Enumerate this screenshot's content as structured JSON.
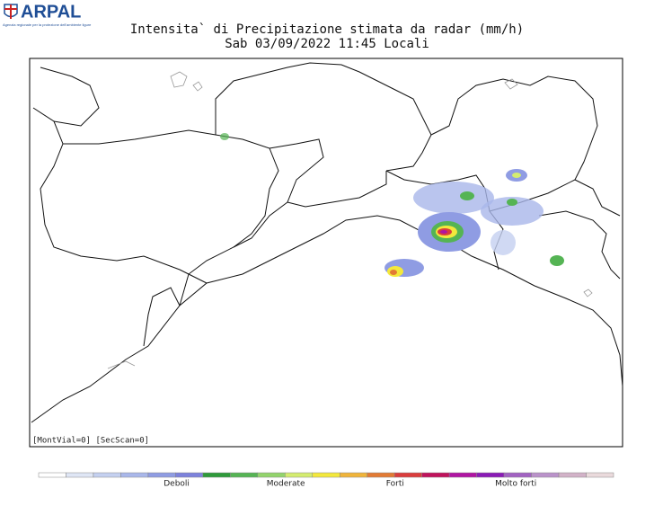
{
  "header": {
    "logo": "ARPAL",
    "logo_subtitle": "Agenzia regionale per la protezione dell'ambiente ligure",
    "title": "Intensita` di Precipitazione stimata da radar (mm/h)",
    "subtitle": "Sab 03/09/2022 11:45 Locali"
  },
  "map": {
    "footer_note": "[MontVial=0] [SecScan=0]"
  },
  "legend": {
    "colors": [
      "#ffffff",
      "#dfe6f5",
      "#c4d0f0",
      "#a9b7ea",
      "#8f9ce3",
      "#7d82dc",
      "#2e9a3a",
      "#55b454",
      "#93d46c",
      "#d4ec70",
      "#f3e83c",
      "#f0b43a",
      "#e27a34",
      "#da3c3c",
      "#c0125c",
      "#b014a2",
      "#8a1ab6",
      "#a262c2",
      "#ba92ca",
      "#d2b2c8",
      "#eadadc"
    ],
    "labels": [
      "Deboli",
      "Moderate",
      "Forti",
      "Molto forti"
    ]
  }
}
